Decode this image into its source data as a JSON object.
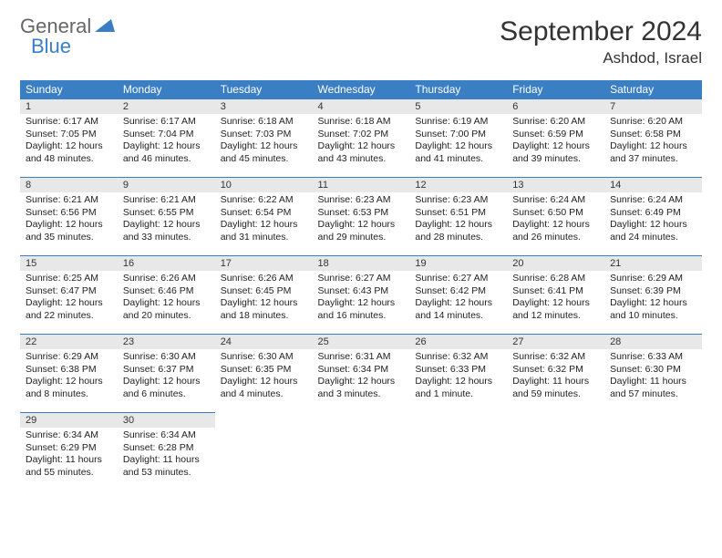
{
  "logo": {
    "part1": "General",
    "part2": "Blue"
  },
  "title": "September 2024",
  "location": "Ashdod, Israel",
  "colors": {
    "accent": "#3a7fc4",
    "header_text": "#ffffff",
    "daynum_bg": "#e8e8e8"
  },
  "weekdays": [
    "Sunday",
    "Monday",
    "Tuesday",
    "Wednesday",
    "Thursday",
    "Friday",
    "Saturday"
  ],
  "weeks": [
    [
      {
        "n": "1",
        "sunrise": "6:17 AM",
        "sunset": "7:05 PM",
        "dl": "12 hours and 48 minutes."
      },
      {
        "n": "2",
        "sunrise": "6:17 AM",
        "sunset": "7:04 PM",
        "dl": "12 hours and 46 minutes."
      },
      {
        "n": "3",
        "sunrise": "6:18 AM",
        "sunset": "7:03 PM",
        "dl": "12 hours and 45 minutes."
      },
      {
        "n": "4",
        "sunrise": "6:18 AM",
        "sunset": "7:02 PM",
        "dl": "12 hours and 43 minutes."
      },
      {
        "n": "5",
        "sunrise": "6:19 AM",
        "sunset": "7:00 PM",
        "dl": "12 hours and 41 minutes."
      },
      {
        "n": "6",
        "sunrise": "6:20 AM",
        "sunset": "6:59 PM",
        "dl": "12 hours and 39 minutes."
      },
      {
        "n": "7",
        "sunrise": "6:20 AM",
        "sunset": "6:58 PM",
        "dl": "12 hours and 37 minutes."
      }
    ],
    [
      {
        "n": "8",
        "sunrise": "6:21 AM",
        "sunset": "6:56 PM",
        "dl": "12 hours and 35 minutes."
      },
      {
        "n": "9",
        "sunrise": "6:21 AM",
        "sunset": "6:55 PM",
        "dl": "12 hours and 33 minutes."
      },
      {
        "n": "10",
        "sunrise": "6:22 AM",
        "sunset": "6:54 PM",
        "dl": "12 hours and 31 minutes."
      },
      {
        "n": "11",
        "sunrise": "6:23 AM",
        "sunset": "6:53 PM",
        "dl": "12 hours and 29 minutes."
      },
      {
        "n": "12",
        "sunrise": "6:23 AM",
        "sunset": "6:51 PM",
        "dl": "12 hours and 28 minutes."
      },
      {
        "n": "13",
        "sunrise": "6:24 AM",
        "sunset": "6:50 PM",
        "dl": "12 hours and 26 minutes."
      },
      {
        "n": "14",
        "sunrise": "6:24 AM",
        "sunset": "6:49 PM",
        "dl": "12 hours and 24 minutes."
      }
    ],
    [
      {
        "n": "15",
        "sunrise": "6:25 AM",
        "sunset": "6:47 PM",
        "dl": "12 hours and 22 minutes."
      },
      {
        "n": "16",
        "sunrise": "6:26 AM",
        "sunset": "6:46 PM",
        "dl": "12 hours and 20 minutes."
      },
      {
        "n": "17",
        "sunrise": "6:26 AM",
        "sunset": "6:45 PM",
        "dl": "12 hours and 18 minutes."
      },
      {
        "n": "18",
        "sunrise": "6:27 AM",
        "sunset": "6:43 PM",
        "dl": "12 hours and 16 minutes."
      },
      {
        "n": "19",
        "sunrise": "6:27 AM",
        "sunset": "6:42 PM",
        "dl": "12 hours and 14 minutes."
      },
      {
        "n": "20",
        "sunrise": "6:28 AM",
        "sunset": "6:41 PM",
        "dl": "12 hours and 12 minutes."
      },
      {
        "n": "21",
        "sunrise": "6:29 AM",
        "sunset": "6:39 PM",
        "dl": "12 hours and 10 minutes."
      }
    ],
    [
      {
        "n": "22",
        "sunrise": "6:29 AM",
        "sunset": "6:38 PM",
        "dl": "12 hours and 8 minutes."
      },
      {
        "n": "23",
        "sunrise": "6:30 AM",
        "sunset": "6:37 PM",
        "dl": "12 hours and 6 minutes."
      },
      {
        "n": "24",
        "sunrise": "6:30 AM",
        "sunset": "6:35 PM",
        "dl": "12 hours and 4 minutes."
      },
      {
        "n": "25",
        "sunrise": "6:31 AM",
        "sunset": "6:34 PM",
        "dl": "12 hours and 3 minutes."
      },
      {
        "n": "26",
        "sunrise": "6:32 AM",
        "sunset": "6:33 PM",
        "dl": "12 hours and 1 minute."
      },
      {
        "n": "27",
        "sunrise": "6:32 AM",
        "sunset": "6:32 PM",
        "dl": "11 hours and 59 minutes."
      },
      {
        "n": "28",
        "sunrise": "6:33 AM",
        "sunset": "6:30 PM",
        "dl": "11 hours and 57 minutes."
      }
    ],
    [
      {
        "n": "29",
        "sunrise": "6:34 AM",
        "sunset": "6:29 PM",
        "dl": "11 hours and 55 minutes."
      },
      {
        "n": "30",
        "sunrise": "6:34 AM",
        "sunset": "6:28 PM",
        "dl": "11 hours and 53 minutes."
      },
      null,
      null,
      null,
      null,
      null
    ]
  ],
  "labels": {
    "sunrise": "Sunrise:",
    "sunset": "Sunset:",
    "daylight": "Daylight:"
  }
}
